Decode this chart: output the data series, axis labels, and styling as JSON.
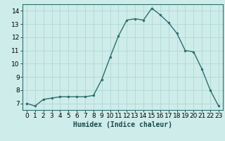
{
  "x": [
    0,
    1,
    2,
    3,
    4,
    5,
    6,
    7,
    8,
    9,
    10,
    11,
    12,
    13,
    14,
    15,
    16,
    17,
    18,
    19,
    20,
    21,
    22,
    23
  ],
  "y": [
    7.0,
    6.8,
    7.3,
    7.4,
    7.5,
    7.5,
    7.5,
    7.5,
    7.6,
    8.8,
    10.5,
    12.1,
    13.3,
    13.4,
    13.3,
    14.2,
    13.7,
    13.1,
    12.3,
    11.0,
    10.9,
    9.6,
    8.0,
    6.8
  ],
  "line_color": "#2d6e6e",
  "marker": "o",
  "marker_size": 2.0,
  "line_width": 1.0,
  "bg_color": "#ceecea",
  "grid_color": "#b0d8d5",
  "xlabel": "Humidex (Indice chaleur)",
  "xlim": [
    -0.5,
    23.5
  ],
  "ylim": [
    6.5,
    14.5
  ],
  "yticks": [
    7,
    8,
    9,
    10,
    11,
    12,
    13,
    14
  ],
  "xticks": [
    0,
    1,
    2,
    3,
    4,
    5,
    6,
    7,
    8,
    9,
    10,
    11,
    12,
    13,
    14,
    15,
    16,
    17,
    18,
    19,
    20,
    21,
    22,
    23
  ],
  "xlabel_fontsize": 7,
  "tick_fontsize": 6.5,
  "spine_color": "#2d6e6e"
}
